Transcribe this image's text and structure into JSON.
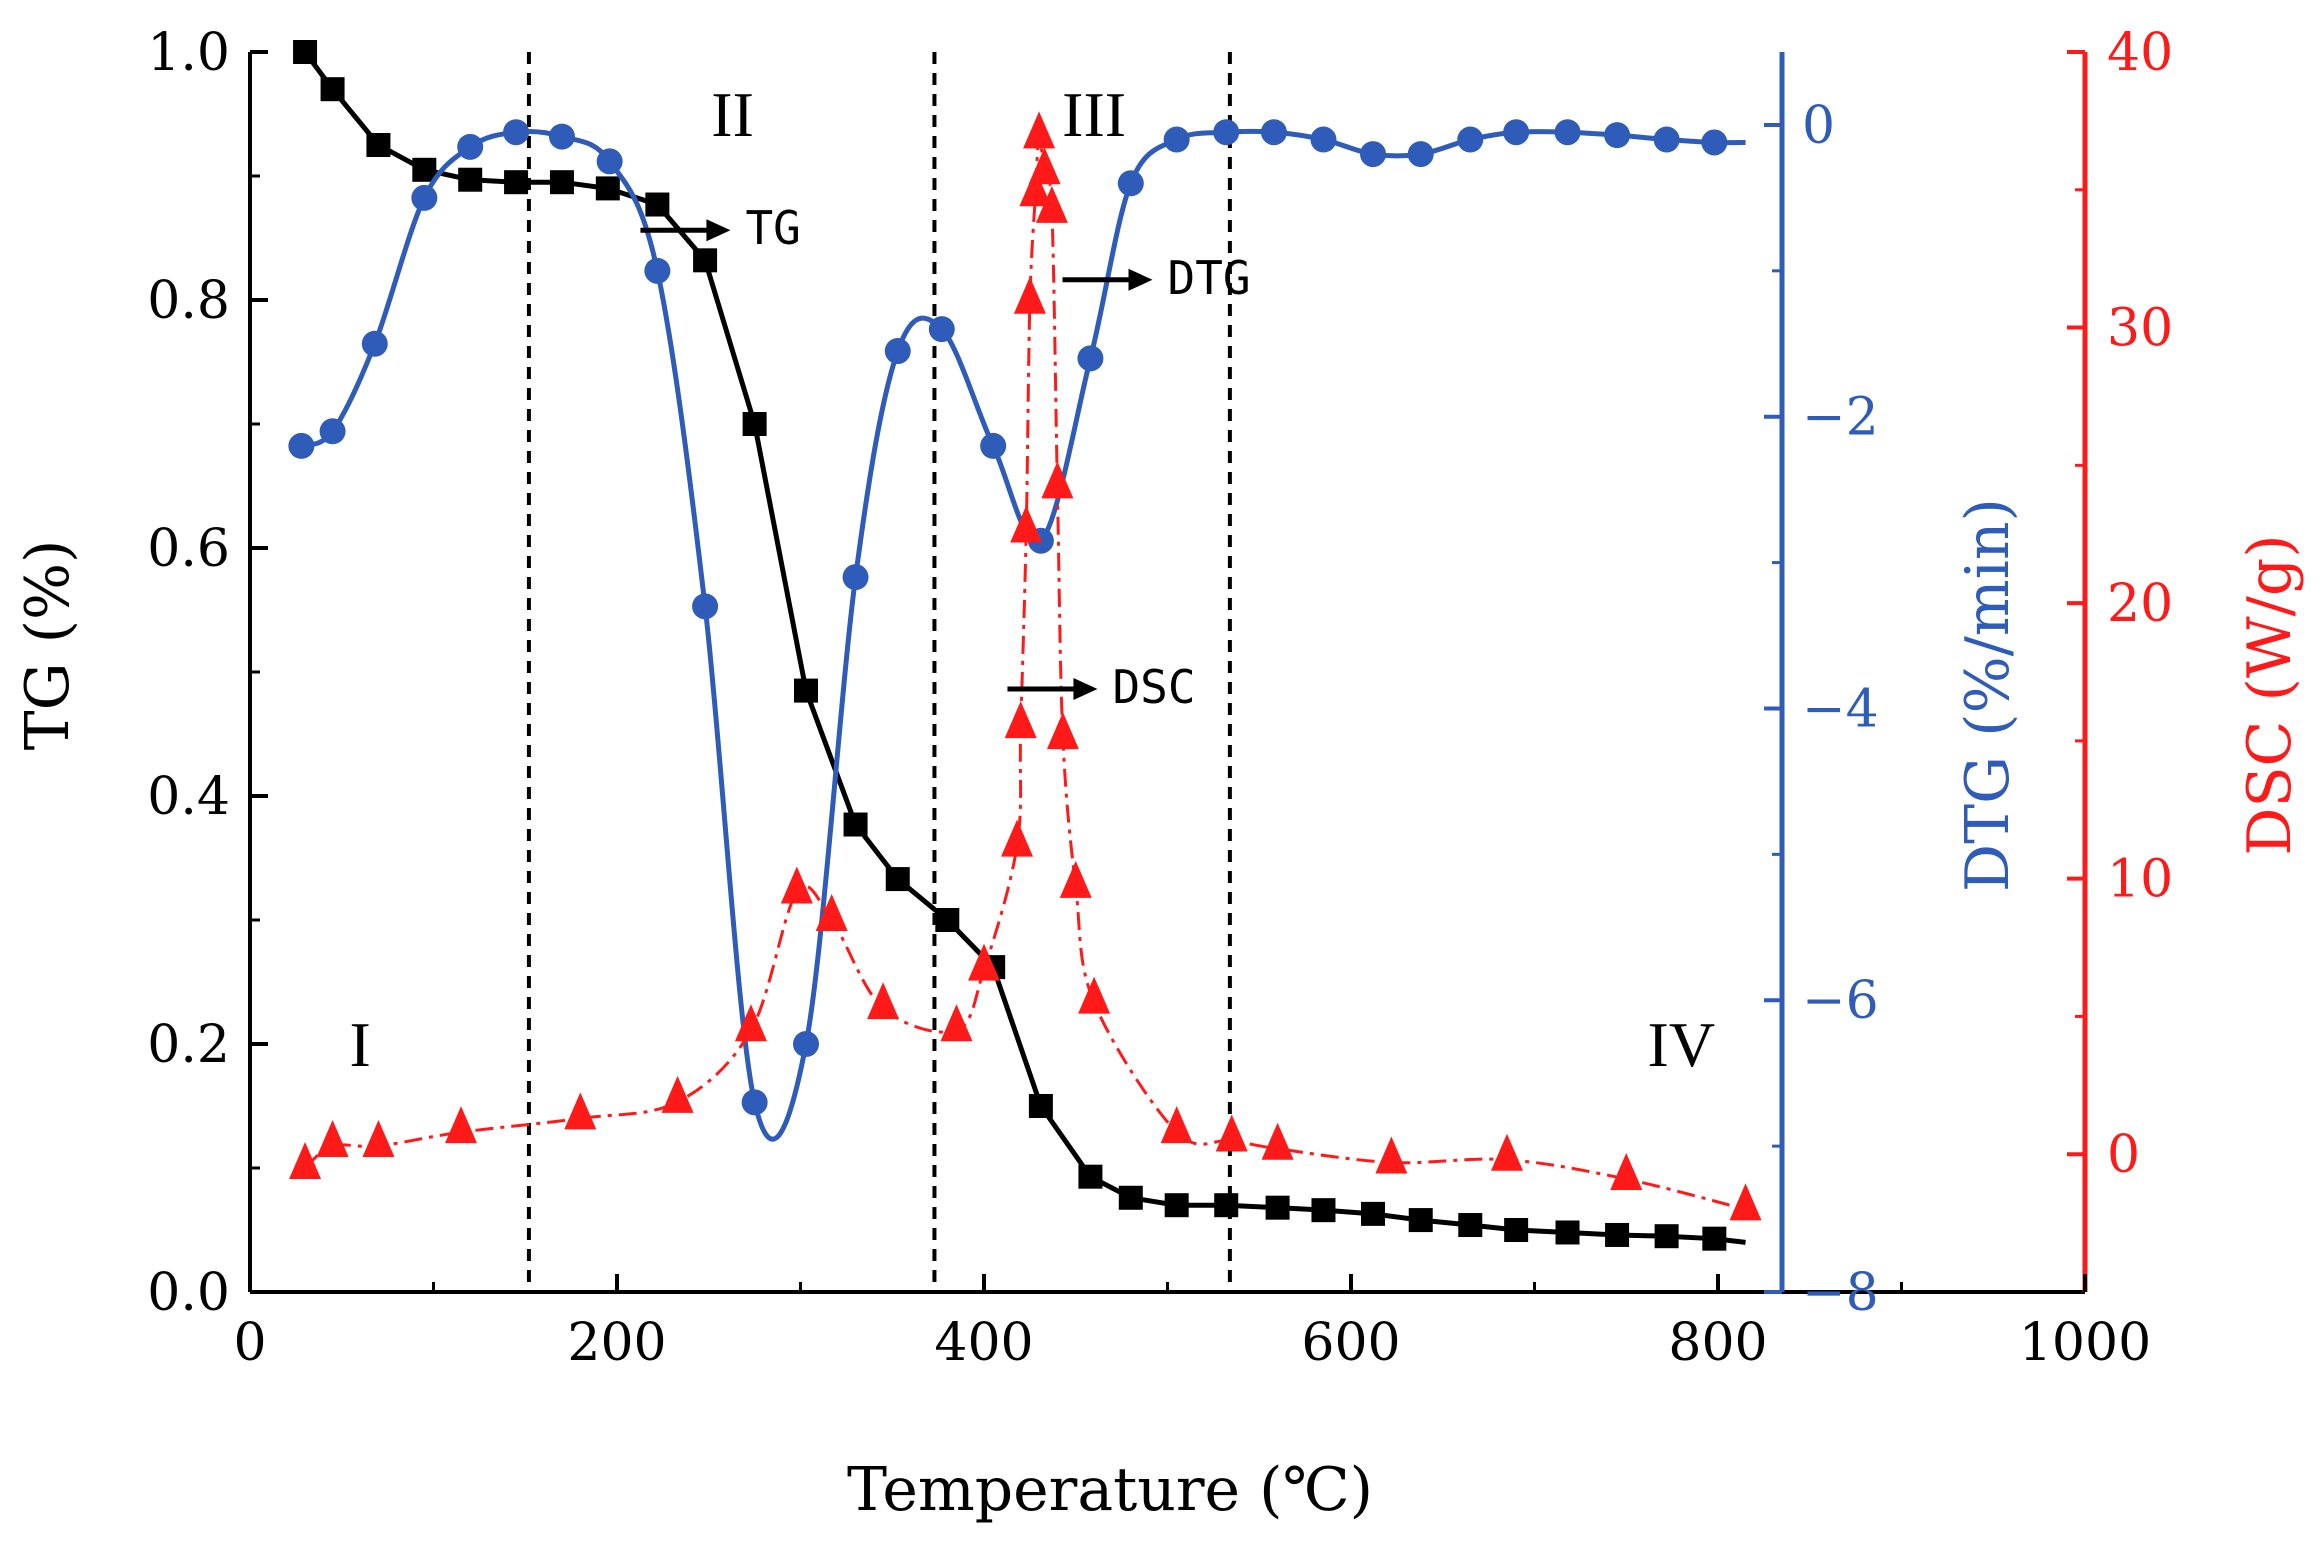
{
  "chart_data": {
    "type": "line",
    "x_axis": {
      "label": "Temperature (℃)",
      "range": [
        0,
        1000
      ],
      "ticks": [
        0,
        200,
        400,
        600,
        800,
        1000
      ]
    },
    "y_axes": {
      "tg": {
        "label": "TG (%)",
        "range": [
          0,
          1.0
        ],
        "ticks": [
          "0.0",
          "0.2",
          "0.4",
          "0.6",
          "0.8",
          "1.0"
        ],
        "color": "#000000"
      },
      "dtg": {
        "label": "DTG (%/min)",
        "range": [
          -8,
          0.5
        ],
        "ticks": [
          "0",
          "−2",
          "−4",
          "−6",
          "−8"
        ],
        "color": "#2e5cb8"
      },
      "dsc": {
        "label": "DSC (W/g)",
        "range": [
          -5,
          40
        ],
        "ticks": [
          "0",
          "10",
          "20",
          "30",
          "40"
        ],
        "color": "#ff1a1a"
      }
    },
    "series": [
      {
        "name": "TG",
        "axis": "tg",
        "color": "#000000",
        "marker": "square",
        "x": [
          30,
          45,
          70,
          95,
          120,
          145,
          170,
          195,
          222,
          248,
          275,
          303,
          330,
          353,
          380,
          405,
          431,
          458,
          480,
          505,
          532,
          560,
          585,
          612,
          638,
          665,
          690,
          718,
          745,
          772,
          798
        ],
        "y": [
          1.0,
          0.97,
          0.925,
          0.905,
          0.897,
          0.895,
          0.895,
          0.89,
          0.877,
          0.832,
          0.7,
          0.485,
          0.377,
          0.333,
          0.3,
          0.262,
          0.15,
          0.093,
          0.076,
          0.07,
          0.07,
          0.068,
          0.066,
          0.063,
          0.058,
          0.054,
          0.05,
          0.048,
          0.046,
          0.045,
          0.043
        ]
      },
      {
        "name": "DTG",
        "axis": "dtg",
        "color": "#2e5cb8",
        "marker": "circle",
        "x": [
          28,
          45,
          68,
          95,
          120,
          145,
          170,
          196,
          222,
          248,
          275,
          303,
          330,
          353,
          377,
          405,
          431,
          458,
          480,
          505,
          532,
          558,
          585,
          612,
          638,
          665,
          690,
          718,
          745,
          772,
          798
        ],
        "y": [
          -2.2,
          -2.1,
          -1.5,
          -0.5,
          -0.15,
          -0.05,
          -0.08,
          -0.25,
          -1.0,
          -3.3,
          -6.7,
          -6.3,
          -3.1,
          -1.55,
          -1.4,
          -2.2,
          -2.85,
          -1.6,
          -0.4,
          -0.1,
          -0.05,
          -0.05,
          -0.1,
          -0.2,
          -0.2,
          -0.1,
          -0.05,
          -0.05,
          -0.07,
          -0.1,
          -0.12
        ]
      },
      {
        "name": "DSC",
        "axis": "dsc",
        "color": "#ff1a1a",
        "marker": "triangle",
        "x": [
          30,
          45,
          70,
          115,
          180,
          233,
          273,
          298,
          317,
          345,
          385,
          400,
          418,
          420,
          423,
          425,
          428,
          430,
          433,
          437,
          440,
          443,
          450,
          460,
          505,
          535,
          560,
          622,
          685,
          750,
          815
        ],
        "y": [
          -0.5,
          0.3,
          0.3,
          0.8,
          1.3,
          1.9,
          4.5,
          9.5,
          8.5,
          5.3,
          4.5,
          6.7,
          11.2,
          15.5,
          22.6,
          30.9,
          34.8,
          36.9,
          35.6,
          34.2,
          24.2,
          15.1,
          9.7,
          5.5,
          0.8,
          0.5,
          0.2,
          -0.3,
          -0.2,
          -0.9,
          -2.0
        ]
      }
    ],
    "annotations": [
      {
        "text": "TG",
        "x": 270,
        "tg": 0.845
      },
      {
        "text": "DTG",
        "x": 500,
        "tg": 0.805
      },
      {
        "text": "DSC",
        "x": 470,
        "tg": 0.475
      }
    ],
    "regions": [
      {
        "label": "I",
        "x": 60,
        "tg": 0.2
      },
      {
        "label": "II",
        "x": 263,
        "tg": 0.95
      },
      {
        "label": "III",
        "x": 460,
        "tg": 0.95
      },
      {
        "label": "IV",
        "x": 780,
        "tg": 0.2
      }
    ],
    "dividers": [
      152,
      373,
      534
    ],
    "grid": false
  }
}
